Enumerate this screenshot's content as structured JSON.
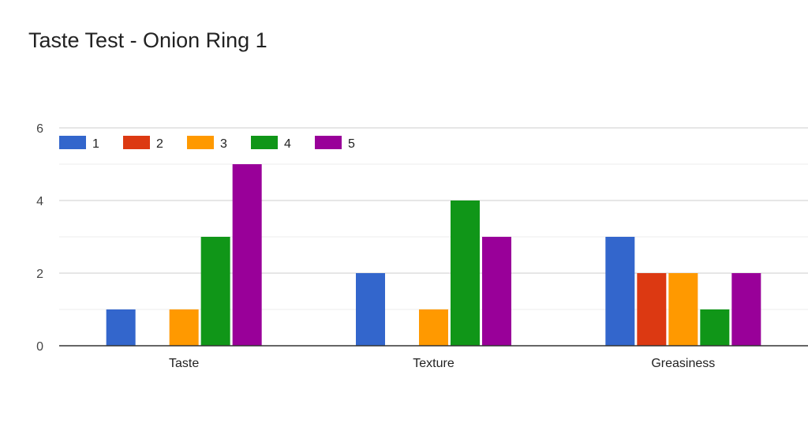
{
  "chart_data": {
    "type": "bar",
    "title": "Taste Test - Onion Ring 1",
    "xlabel": "",
    "ylabel": "",
    "categories": [
      "Taste",
      "Texture",
      "Greasiness"
    ],
    "series": [
      {
        "name": "1",
        "color": "#3366cc",
        "values": [
          1,
          2,
          3
        ]
      },
      {
        "name": "2",
        "color": "#dc3912",
        "values": [
          0,
          0,
          2
        ]
      },
      {
        "name": "3",
        "color": "#ff9900",
        "values": [
          1,
          1,
          2
        ]
      },
      {
        "name": "4",
        "color": "#109618",
        "values": [
          3,
          4,
          1
        ]
      },
      {
        "name": "5",
        "color": "#990099",
        "values": [
          5,
          3,
          2
        ]
      }
    ],
    "ylim": [
      0,
      6
    ],
    "yticks": [
      "0",
      "2",
      "4",
      "6"
    ],
    "grid": true,
    "legend_position": "top-left"
  }
}
